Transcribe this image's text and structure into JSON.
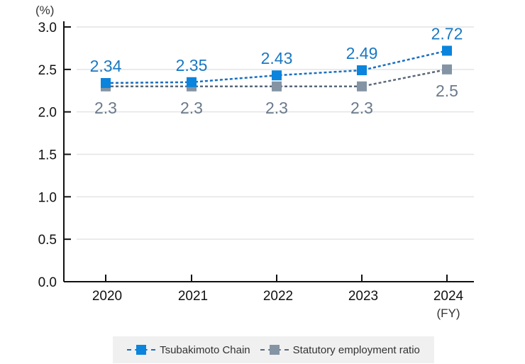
{
  "chart_data": {
    "type": "line",
    "ylabel": "(%)",
    "xlabel": "(FY)",
    "categories": [
      "2020",
      "2021",
      "2022",
      "2023",
      "2024"
    ],
    "ylim": [
      0,
      3.0
    ],
    "yticks": [
      "0.0",
      "0.5",
      "1.0",
      "1.5",
      "2.0",
      "2.5",
      "3.0"
    ],
    "grid": true,
    "legend_position": "bottom",
    "series": [
      {
        "name": "Tsubakimoto Chain",
        "values": [
          2.34,
          2.35,
          2.43,
          2.49,
          2.72
        ],
        "labels": [
          "2.34",
          "2.35",
          "2.43",
          "2.49",
          "2.72"
        ],
        "color": "#0a84dc",
        "line_color": "#1a6fc0",
        "label_color": "#1a78c2",
        "label_position": "above"
      },
      {
        "name": "Statutory employment ratio",
        "values": [
          2.3,
          2.3,
          2.3,
          2.3,
          2.5
        ],
        "labels": [
          "2.3",
          "2.3",
          "2.3",
          "2.3",
          "2.5"
        ],
        "color": "#8494a4",
        "line_color": "#5a6878",
        "label_color": "#6a7a8c",
        "label_position": "below"
      }
    ]
  }
}
